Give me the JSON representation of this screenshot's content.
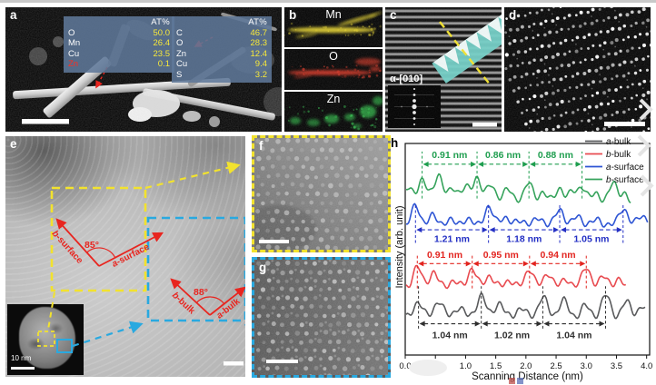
{
  "panels": {
    "a": {
      "label": "a",
      "eds_tables": [
        {
          "header": "AT%",
          "rows": [
            {
              "el": "O",
              "v": "50.0"
            },
            {
              "el": "Mn",
              "v": "26.4"
            },
            {
              "el": "Cu",
              "v": "23.5"
            },
            {
              "el": "Zn",
              "v": "0.1",
              "red": true
            }
          ]
        },
        {
          "header": "AT%",
          "rows": [
            {
              "el": "C",
              "v": "46.7"
            },
            {
              "el": "O",
              "v": "28.3"
            },
            {
              "el": "Zn",
              "v": "12.4"
            },
            {
              "el": "Cu",
              "v": "9.4"
            },
            {
              "el": "S",
              "v": "3.2"
            }
          ]
        }
      ]
    },
    "b": {
      "label": "b",
      "maps": [
        {
          "element": "Mn",
          "color": "#e6d32c"
        },
        {
          "element": "O",
          "color": "#e23523"
        },
        {
          "element": "Zn",
          "color": "#2fc24a"
        }
      ]
    },
    "c": {
      "label": "c",
      "zone_axis": "α-[010]",
      "ribbon_color": "#72cfc6"
    },
    "d": {
      "label": "d"
    },
    "e": {
      "label": "e",
      "accent_red": "#e8251f",
      "box_colors": {
        "surface": "#f2e22e",
        "bulk": "#29a9e0"
      },
      "angles": [
        {
          "value": "85°",
          "arm1": "b-surface",
          "arm2": "a-surface"
        },
        {
          "value": "88°",
          "arm1": "b-bulk",
          "arm2": "a-bulk"
        }
      ],
      "inset_scale": "10 nm"
    },
    "f": {
      "label": "f"
    },
    "g": {
      "label": "g"
    },
    "h": {
      "label": "h"
    }
  },
  "chart_data": {
    "type": "line",
    "xlabel": "Scanning Distance (nm)",
    "ylabel": "Intensity (arb. unit)",
    "xlim": [
      0,
      4.05
    ],
    "xticks": [
      0,
      0.5,
      1,
      1.5,
      2,
      2.5,
      3,
      3.5,
      4
    ],
    "grid": false,
    "legend_position": "top-right",
    "series": [
      {
        "name": "a-bulk",
        "color": "#595a5c",
        "text_color": "#2f2f2f",
        "baseline": 0.176,
        "amp": 0.124,
        "sigma": 0.073,
        "phase": 0.3,
        "slope": 0,
        "x_end": 3.99,
        "peaks": [
          [
            0.22,
            0.62
          ],
          [
            0.56,
            0.66
          ],
          [
            0.9,
            0.42
          ],
          [
            1.26,
            0.88
          ],
          [
            1.56,
            0.58
          ],
          [
            1.92,
            0.4
          ],
          [
            2.28,
            0.82
          ],
          [
            2.62,
            0.7
          ],
          [
            2.98,
            0.48
          ],
          [
            3.32,
            0.88
          ],
          [
            3.66,
            0.62
          ],
          [
            3.93,
            0.45
          ]
        ],
        "annotations": {
          "arrow_y": 0.148,
          "label_y": 0.094,
          "vline": [
            0.125,
            0.325
          ],
          "segments": [
            {
              "x1": 0.22,
              "x2": 1.26,
              "label": "1.04 nm"
            },
            {
              "x1": 1.26,
              "x2": 2.28,
              "label": "1.02 nm"
            },
            {
              "x1": 2.28,
              "x2": 3.32,
              "label": "1.04 nm"
            }
          ]
        }
      },
      {
        "name": "b-bulk",
        "color": "#e84b50",
        "text_color": "#e2241f",
        "baseline": 0.322,
        "amp": 0.096,
        "sigma": 0.068,
        "phase": 1.4,
        "slope": 0,
        "x_end": 3.66,
        "peaks": [
          [
            0.2,
            1.0
          ],
          [
            0.47,
            0.72
          ],
          [
            0.8,
            0.3
          ],
          [
            1.11,
            0.92
          ],
          [
            1.4,
            0.55
          ],
          [
            1.73,
            0.33
          ],
          [
            2.06,
            0.9
          ],
          [
            2.37,
            0.68
          ],
          [
            2.67,
            0.38
          ],
          [
            3.0,
            1.0
          ],
          [
            3.3,
            0.55
          ],
          [
            3.55,
            0.3
          ]
        ],
        "annotations": {
          "arrow_y": 0.432,
          "label_y": 0.474,
          "vline": [
            0.315,
            0.478
          ],
          "segments": [
            {
              "x1": 0.2,
              "x2": 1.11,
              "label": "0.91 nm"
            },
            {
              "x1": 1.11,
              "x2": 2.06,
              "label": "0.95 nm"
            },
            {
              "x1": 2.06,
              "x2": 3.0,
              "label": "0.94 nm"
            }
          ]
        }
      },
      {
        "name": "a-surface",
        "color": "#2e55d4",
        "text_color": "#2430c4",
        "baseline": 0.614,
        "amp": 0.088,
        "sigma": 0.07,
        "phase": 2.2,
        "slope": 0,
        "x_end": 4.02,
        "peaks": [
          [
            0.17,
            1.0
          ],
          [
            0.45,
            0.5
          ],
          [
            0.73,
            0.28
          ],
          [
            1.02,
            0.34
          ],
          [
            1.38,
            0.96
          ],
          [
            1.64,
            0.45
          ],
          [
            1.92,
            0.28
          ],
          [
            2.22,
            0.38
          ],
          [
            2.56,
            0.85
          ],
          [
            2.86,
            0.48
          ],
          [
            3.18,
            0.3
          ],
          [
            3.61,
            0.92
          ],
          [
            3.92,
            0.55
          ]
        ],
        "annotations": {
          "arrow_y": 0.592,
          "label_y": 0.55,
          "vline": [
            0.53,
            0.71
          ],
          "segments": [
            {
              "x1": 0.17,
              "x2": 1.38,
              "label": "1.21 nm"
            },
            {
              "x1": 1.38,
              "x2": 2.56,
              "label": "1.18 nm"
            },
            {
              "x1": 2.56,
              "x2": 3.61,
              "label": "1.05 nm"
            }
          ]
        }
      },
      {
        "name": "b-surface",
        "color": "#36a35c",
        "text_color": "#1f9e4f",
        "baseline": 0.755,
        "amp": 0.106,
        "sigma": 0.063,
        "phase": 3.1,
        "slope": -0.01,
        "x_end": 3.74,
        "peaks": [
          [
            0.05,
            0.3
          ],
          [
            0.28,
            0.72
          ],
          [
            0.55,
            1.0
          ],
          [
            0.8,
            0.4
          ],
          [
            1.0,
            0.45
          ],
          [
            1.19,
            0.92
          ],
          [
            1.42,
            0.6
          ],
          [
            1.7,
            0.42
          ],
          [
            2.05,
            0.75
          ],
          [
            2.28,
            0.3
          ],
          [
            2.55,
            0.55
          ],
          [
            2.78,
            0.48
          ],
          [
            2.93,
            0.6
          ],
          [
            3.15,
            0.45
          ],
          [
            3.45,
            0.95
          ],
          [
            3.62,
            0.35
          ]
        ],
        "annotations": {
          "arrow_y": 0.902,
          "label_y": 0.946,
          "vline": [
            0.74,
            0.962
          ],
          "segments": [
            {
              "x1": 0.28,
              "x2": 1.19,
              "label": "0.91 nm"
            },
            {
              "x1": 1.19,
              "x2": 2.05,
              "label": "0.86 nm"
            },
            {
              "x1": 2.05,
              "x2": 2.93,
              "label": "0.88 nm"
            }
          ]
        }
      }
    ]
  }
}
